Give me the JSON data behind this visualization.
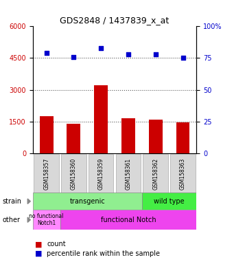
{
  "title": "GDS2848 / 1437839_x_at",
  "samples": [
    "GSM158357",
    "GSM158360",
    "GSM158359",
    "GSM158361",
    "GSM158362",
    "GSM158363"
  ],
  "counts": [
    1750,
    1400,
    3200,
    1650,
    1600,
    1450
  ],
  "percentiles": [
    79,
    76,
    83,
    78,
    78,
    75
  ],
  "ylim_left": [
    0,
    6000
  ],
  "ylim_right": [
    0,
    100
  ],
  "yticks_left": [
    0,
    1500,
    3000,
    4500,
    6000
  ],
  "yticks_right": [
    0,
    25,
    50,
    75,
    100
  ],
  "bar_color": "#cc0000",
  "dot_color": "#0000cc",
  "strain_color_transgenic": "#90EE90",
  "strain_color_wildtype": "#44EE44",
  "other_color_nofunc": "#FF88FF",
  "other_color_func": "#EE44EE",
  "left_axis_color": "#cc0000",
  "right_axis_color": "#0000cc",
  "dotted_line_color": "#555555",
  "bg_color": "#ffffff",
  "plot_bg": "#ffffff",
  "arrow_color": "#888888",
  "label_box_color": "#d8d8d8",
  "label_box_edge": "#aaaaaa"
}
